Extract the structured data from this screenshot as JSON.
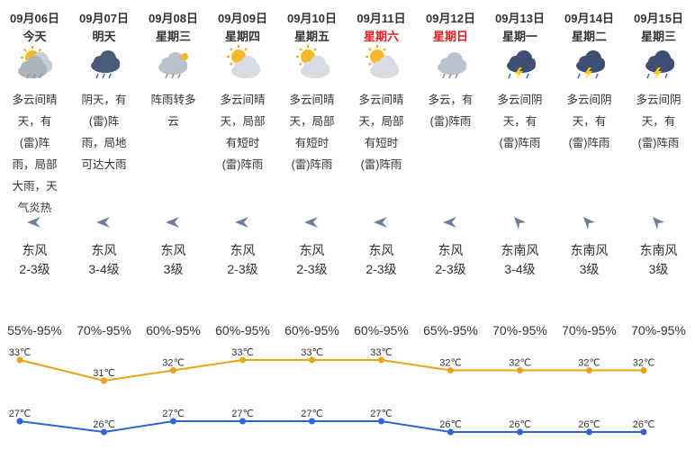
{
  "days": [
    {
      "date": "09月06日",
      "day": "今天",
      "weekend": false,
      "icon": "partly-cloudy-rain-icon",
      "desc": "多云间晴天，有(雷)阵雨，局部大雨，天气炎热",
      "wind_icon": "wind-arrow-east-icon",
      "wind_dir": "东风",
      "wind_level": "2-3级",
      "humidity": "55%-95%",
      "high": "33℃",
      "low": "27℃"
    },
    {
      "date": "09月07日",
      "day": "明天",
      "weekend": false,
      "icon": "rain-cloud-icon",
      "desc": "阴天，有(雷)阵雨，局地可达大雨",
      "wind_icon": "wind-arrow-east-icon",
      "wind_dir": "东风",
      "wind_level": "3-4级",
      "humidity": "70%-95%",
      "high": "31℃",
      "low": "26℃"
    },
    {
      "date": "09月08日",
      "day": "星期三",
      "weekend": false,
      "icon": "rain-to-cloudy-icon",
      "desc": "阵雨转多云",
      "wind_icon": "wind-arrow-east-icon",
      "wind_dir": "东风",
      "wind_level": "3级",
      "humidity": "60%-95%",
      "high": "32℃",
      "low": "27℃"
    },
    {
      "date": "09月09日",
      "day": "星期四",
      "weekend": false,
      "icon": "sun-cloud-icon",
      "desc": "多云间晴天，局部有短时(雷)阵雨",
      "wind_icon": "wind-arrow-east-icon",
      "wind_dir": "东风",
      "wind_level": "2-3级",
      "humidity": "60%-95%",
      "high": "33℃",
      "low": "27℃"
    },
    {
      "date": "09月10日",
      "day": "星期五",
      "weekend": false,
      "icon": "sun-cloud-icon",
      "desc": "多云间晴天，局部有短时(雷)阵雨",
      "wind_icon": "wind-arrow-east-icon",
      "wind_dir": "东风",
      "wind_level": "2-3级",
      "humidity": "60%-95%",
      "high": "33℃",
      "low": "27℃"
    },
    {
      "date": "09月11日",
      "day": "星期六",
      "weekend": true,
      "icon": "sun-cloud-icon",
      "desc": "多云间晴天，局部有短时(雷)阵雨",
      "wind_icon": "wind-arrow-east-icon",
      "wind_dir": "东风",
      "wind_level": "2-3级",
      "humidity": "60%-95%",
      "high": "33℃",
      "low": "27℃"
    },
    {
      "date": "09月12日",
      "day": "星期日",
      "weekend": true,
      "icon": "cloudy-rain-icon",
      "desc": "多云，有(雷)阵雨",
      "wind_icon": "wind-arrow-east-icon",
      "wind_dir": "东风",
      "wind_level": "2-3级",
      "humidity": "65%-95%",
      "high": "32℃",
      "low": "26℃"
    },
    {
      "date": "09月13日",
      "day": "星期一",
      "weekend": false,
      "icon": "thunderstorm-icon",
      "desc": "多云间阴天，有(雷)阵雨",
      "wind_icon": "wind-arrow-southeast-icon",
      "wind_dir": "东南风",
      "wind_level": "3-4级",
      "humidity": "70%-95%",
      "high": "32℃",
      "low": "26℃"
    },
    {
      "date": "09月14日",
      "day": "星期二",
      "weekend": false,
      "icon": "thunderstorm-icon",
      "desc": "多云间阴天，有(雷)阵雨",
      "wind_icon": "wind-arrow-southeast-icon",
      "wind_dir": "东南风",
      "wind_level": "3级",
      "humidity": "70%-95%",
      "high": "32℃",
      "low": "26℃"
    },
    {
      "date": "09月15日",
      "day": "星期三",
      "weekend": false,
      "icon": "thunderstorm-icon",
      "desc": "多云间阴天，有(雷)阵雨",
      "wind_icon": "wind-arrow-southeast-icon",
      "wind_dir": "东南风",
      "wind_level": "3级",
      "humidity": "70%-95%",
      "high": "32℃",
      "low": "26℃"
    }
  ],
  "temperature": {
    "high_values": [
      33,
      31,
      32,
      33,
      33,
      33,
      32,
      32,
      32,
      32
    ],
    "low_values": [
      27,
      26,
      27,
      27,
      27,
      27,
      26,
      26,
      26,
      26
    ],
    "high_color": "#e8a317",
    "low_color": "#2f63d6"
  }
}
